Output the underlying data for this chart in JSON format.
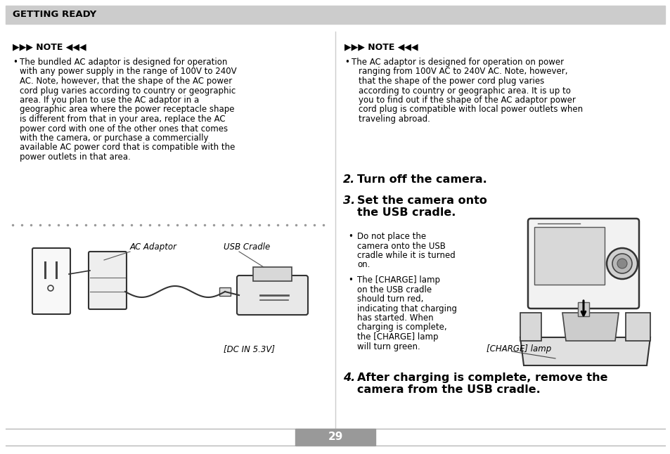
{
  "bg_color": "#ffffff",
  "header_bg": "#cccccc",
  "header_text": "GETTING READY",
  "page_num": "29",
  "page_num_bg": "#999999",
  "page_num_color": "#ffffff",
  "note_symbol_left": "▶▶) NOTE ◀◀(",
  "left_note_bullet": "The bundled AC adaptor is designed for operation\nwith any power supply in the range of 100V to 240V\nAC. Note, however, that the shape of the AC power\ncord plug varies according to country or geographic\narea. If you plan to use the AC adaptor in a\ngeographic area where the power receptacle shape\nis different from that in your area, replace the AC\npower cord with one of the other ones that comes\nwith the camera, or purchase a commercially\navailable AC power cord that is compatible with the\npower outlets in that area.",
  "right_note_bullet": "The AC adaptor is designed for operation on power\nranging from 100V AC to 240V AC. Note, however,\nthat the shape of the power cord plug varies\naccording to country or geographic area. It is up to\nyou to find out if the shape of the AC adaptor power\ncord plug is compatible with local power outlets when\ntraveling abroad.",
  "step2_text": "Turn off the camera.",
  "step3_text": "Set the camera onto\nthe USB cradle.",
  "bullet1": "Do not place the\ncamera onto the USB\ncradle while it is turned\non.",
  "bullet2": "The [CHARGE] lamp\non the USB cradle\nshould turn red,\nindicating that charging\nhas started. When\ncharging is complete,\nthe [CHARGE] lamp\nwill turn green.",
  "charge_label": "[CHARGE] lamp",
  "step4_text": "After charging is complete, remove the\ncamera from the USB cradle.",
  "ac_adaptor_label": "AC Adaptor",
  "usb_cradle_label": "USB Cradle",
  "dc_in_label": "[DC IN 5.3V]"
}
